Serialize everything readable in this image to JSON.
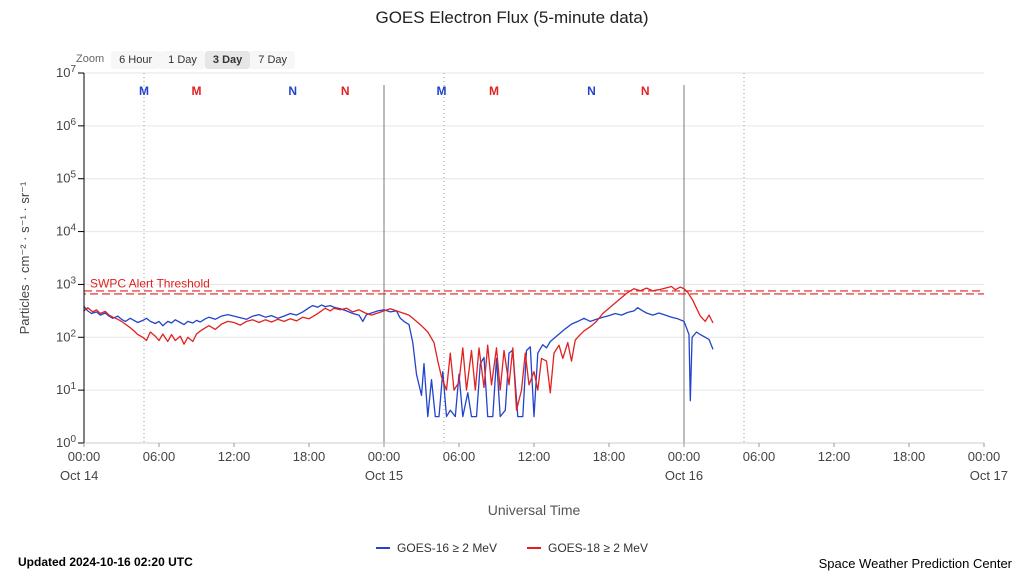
{
  "title": "GOES Electron Flux (5-minute data)",
  "zoom": {
    "label": "Zoom",
    "buttons": [
      {
        "label": "6 Hour",
        "selected": false
      },
      {
        "label": "1 Day",
        "selected": false
      },
      {
        "label": "3 Day",
        "selected": true
      },
      {
        "label": "7 Day",
        "selected": false
      }
    ]
  },
  "chart_data": {
    "type": "line",
    "title": "GOES Electron Flux (5-minute data)",
    "xlabel": "Universal Time",
    "ylabel": "Particles · cm⁻² · s⁻¹ · sr⁻¹",
    "y_axis": {
      "scale": "log10",
      "exponents": [
        0,
        1,
        2,
        3,
        4,
        5,
        6,
        7
      ],
      "base_label": "10"
    },
    "x_axis": {
      "range_hours": [
        0,
        72
      ],
      "tick_interval_hours": 6,
      "tick_labels": [
        "00:00",
        "06:00",
        "12:00",
        "18:00",
        "00:00",
        "06:00",
        "12:00",
        "18:00",
        "00:00",
        "06:00",
        "12:00",
        "18:00",
        "00:00"
      ],
      "date_labels": [
        {
          "label": "Oct 14",
          "hour": 0,
          "anchor": "start"
        },
        {
          "label": "Oct 15",
          "hour": 24,
          "anchor": "middle"
        },
        {
          "label": "Oct 16",
          "hour": 48,
          "anchor": "middle"
        },
        {
          "label": "Oct 17",
          "hour": 72,
          "anchor": "end"
        }
      ]
    },
    "threshold": {
      "label": "SWPC Alert Threshold",
      "log_value": 2.85,
      "color": "#e12120"
    },
    "day_boundary_hours": [
      24,
      48
    ],
    "dotted_line_hours": [
      4.8,
      28.8,
      52.8
    ],
    "markers": [
      {
        "label": "M",
        "sat": "GOES-16",
        "hour": 4.8
      },
      {
        "label": "M",
        "sat": "GOES-18",
        "hour": 9.0
      },
      {
        "label": "N",
        "sat": "GOES-16",
        "hour": 16.7
      },
      {
        "label": "N",
        "sat": "GOES-18",
        "hour": 20.9
      },
      {
        "label": "M",
        "sat": "GOES-16",
        "hour": 28.6
      },
      {
        "label": "M",
        "sat": "GOES-18",
        "hour": 32.8
      },
      {
        "label": "N",
        "sat": "GOES-16",
        "hour": 40.6
      },
      {
        "label": "N",
        "sat": "GOES-18",
        "hour": 44.9
      }
    ],
    "series": [
      {
        "name": "GOES-16 ≥ 2 MeV",
        "color": "#2244cc",
        "points": [
          [
            0,
            2.58
          ],
          [
            0.3,
            2.5
          ],
          [
            0.6,
            2.45
          ],
          [
            1,
            2.48
          ],
          [
            1.3,
            2.42
          ],
          [
            1.7,
            2.46
          ],
          [
            2,
            2.4
          ],
          [
            2.3,
            2.36
          ],
          [
            2.7,
            2.4
          ],
          [
            3,
            2.34
          ],
          [
            3.3,
            2.3
          ],
          [
            3.7,
            2.36
          ],
          [
            4,
            2.32
          ],
          [
            4.3,
            2.28
          ],
          [
            4.7,
            2.32
          ],
          [
            5,
            2.36
          ],
          [
            5.3,
            2.3
          ],
          [
            5.7,
            2.26
          ],
          [
            6,
            2.3
          ],
          [
            6.3,
            2.22
          ],
          [
            6.7,
            2.3
          ],
          [
            7,
            2.27
          ],
          [
            7.3,
            2.33
          ],
          [
            7.7,
            2.28
          ],
          [
            8,
            2.24
          ],
          [
            8.3,
            2.3
          ],
          [
            8.7,
            2.27
          ],
          [
            9,
            2.32
          ],
          [
            9.3,
            2.29
          ],
          [
            9.7,
            2.35
          ],
          [
            10,
            2.38
          ],
          [
            10.5,
            2.34
          ],
          [
            11,
            2.4
          ],
          [
            11.5,
            2.43
          ],
          [
            12,
            2.4
          ],
          [
            12.5,
            2.37
          ],
          [
            13,
            2.34
          ],
          [
            13.5,
            2.4
          ],
          [
            14,
            2.43
          ],
          [
            14.5,
            2.38
          ],
          [
            15,
            2.41
          ],
          [
            15.5,
            2.36
          ],
          [
            16,
            2.4
          ],
          [
            16.5,
            2.45
          ],
          [
            17,
            2.42
          ],
          [
            17.5,
            2.48
          ],
          [
            18,
            2.56
          ],
          [
            18.3,
            2.6
          ],
          [
            18.7,
            2.57
          ],
          [
            19,
            2.61
          ],
          [
            19.3,
            2.58
          ],
          [
            19.7,
            2.6
          ],
          [
            20,
            2.57
          ],
          [
            20.5,
            2.54
          ],
          [
            21,
            2.5
          ],
          [
            21.5,
            2.45
          ],
          [
            22,
            2.42
          ],
          [
            22.3,
            2.3
          ],
          [
            22.6,
            2.43
          ],
          [
            23,
            2.46
          ],
          [
            23.5,
            2.5
          ],
          [
            24,
            2.52
          ],
          [
            24.5,
            2.48
          ],
          [
            25,
            2.5
          ],
          [
            25.3,
            2.36
          ],
          [
            25.6,
            2.3
          ],
          [
            26,
            2.24
          ],
          [
            26.3,
            1.9
          ],
          [
            26.6,
            1.3
          ],
          [
            27,
            0.9
          ],
          [
            27.2,
            1.5
          ],
          [
            27.5,
            0.5
          ],
          [
            27.8,
            1.2
          ],
          [
            28.1,
            0.5
          ],
          [
            28.4,
            0.5
          ],
          [
            28.7,
            1.35
          ],
          [
            29,
            0.5
          ],
          [
            29.3,
            0.62
          ],
          [
            29.7,
            0.5
          ],
          [
            30,
            1.3
          ],
          [
            30.3,
            0.5
          ],
          [
            30.7,
            0.95
          ],
          [
            31,
            0.5
          ],
          [
            31.4,
            0.5
          ],
          [
            31.7,
            1.5
          ],
          [
            32,
            1.62
          ],
          [
            32.3,
            0.5
          ],
          [
            32.7,
            0.5
          ],
          [
            33,
            1.6
          ],
          [
            33.3,
            0.5
          ],
          [
            33.7,
            0.62
          ],
          [
            34,
            1.7
          ],
          [
            34.3,
            1.76
          ],
          [
            34.7,
            0.5
          ],
          [
            35.1,
            0.5
          ],
          [
            35.4,
            1.75
          ],
          [
            35.7,
            1.82
          ],
          [
            36,
            0.5
          ],
          [
            36.3,
            1.7
          ],
          [
            36.7,
            1.86
          ],
          [
            37,
            1.8
          ],
          [
            37.3,
            1.92
          ],
          [
            37.7,
            2.0
          ],
          [
            38,
            2.06
          ],
          [
            38.5,
            2.16
          ],
          [
            39,
            2.25
          ],
          [
            39.5,
            2.3
          ],
          [
            40,
            2.36
          ],
          [
            40.5,
            2.3
          ],
          [
            41,
            2.34
          ],
          [
            41.5,
            2.38
          ],
          [
            42,
            2.41
          ],
          [
            42.5,
            2.45
          ],
          [
            43,
            2.42
          ],
          [
            43.5,
            2.47
          ],
          [
            44,
            2.5
          ],
          [
            44.3,
            2.56
          ],
          [
            44.7,
            2.5
          ],
          [
            45,
            2.46
          ],
          [
            45.5,
            2.42
          ],
          [
            46,
            2.46
          ],
          [
            46.5,
            2.42
          ],
          [
            47,
            2.38
          ],
          [
            47.5,
            2.35
          ],
          [
            48,
            2.3
          ],
          [
            48.2,
            2.18
          ],
          [
            48.4,
            2.05
          ],
          [
            48.5,
            0.8
          ],
          [
            48.65,
            2.0
          ],
          [
            49,
            2.1
          ],
          [
            49.3,
            2.05
          ],
          [
            49.7,
            2.0
          ],
          [
            50,
            1.96
          ],
          [
            50.3,
            1.78
          ]
        ]
      },
      {
        "name": "GOES-18 ≥ 2 MeV",
        "color": "#e12120",
        "points": [
          [
            0,
            2.5
          ],
          [
            0.3,
            2.56
          ],
          [
            0.7,
            2.48
          ],
          [
            1,
            2.52
          ],
          [
            1.3,
            2.45
          ],
          [
            1.7,
            2.49
          ],
          [
            2,
            2.42
          ],
          [
            2.3,
            2.38
          ],
          [
            2.7,
            2.34
          ],
          [
            3,
            2.3
          ],
          [
            3.3,
            2.25
          ],
          [
            3.7,
            2.18
          ],
          [
            4,
            2.12
          ],
          [
            4.3,
            2.05
          ],
          [
            4.7,
            2.0
          ],
          [
            5,
            1.94
          ],
          [
            5.3,
            2.1
          ],
          [
            5.7,
            2.02
          ],
          [
            6,
            1.94
          ],
          [
            6.3,
            2.06
          ],
          [
            6.7,
            1.92
          ],
          [
            7,
            2.05
          ],
          [
            7.3,
            1.94
          ],
          [
            7.7,
            2.02
          ],
          [
            8,
            1.87
          ],
          [
            8.3,
            2.0
          ],
          [
            8.7,
            1.92
          ],
          [
            9,
            2.06
          ],
          [
            9.3,
            2.12
          ],
          [
            9.7,
            2.18
          ],
          [
            10,
            2.22
          ],
          [
            10.5,
            2.15
          ],
          [
            11,
            2.25
          ],
          [
            11.5,
            2.3
          ],
          [
            12,
            2.28
          ],
          [
            12.5,
            2.23
          ],
          [
            13,
            2.3
          ],
          [
            13.5,
            2.33
          ],
          [
            14,
            2.28
          ],
          [
            14.5,
            2.33
          ],
          [
            15,
            2.29
          ],
          [
            15.5,
            2.34
          ],
          [
            16,
            2.3
          ],
          [
            16.5,
            2.35
          ],
          [
            17,
            2.31
          ],
          [
            17.5,
            2.38
          ],
          [
            18,
            2.35
          ],
          [
            18.5,
            2.42
          ],
          [
            19,
            2.5
          ],
          [
            19.3,
            2.55
          ],
          [
            19.7,
            2.5
          ],
          [
            20,
            2.55
          ],
          [
            20.5,
            2.52
          ],
          [
            21,
            2.55
          ],
          [
            21.5,
            2.48
          ],
          [
            22,
            2.52
          ],
          [
            22.5,
            2.46
          ],
          [
            23,
            2.42
          ],
          [
            23.5,
            2.46
          ],
          [
            24,
            2.5
          ],
          [
            24.5,
            2.54
          ],
          [
            25,
            2.5
          ],
          [
            25.5,
            2.46
          ],
          [
            26,
            2.42
          ],
          [
            26.5,
            2.32
          ],
          [
            27,
            2.22
          ],
          [
            27.5,
            2.1
          ],
          [
            28,
            1.9
          ],
          [
            28.3,
            1.55
          ],
          [
            28.6,
            1.25
          ],
          [
            29,
            1.0
          ],
          [
            29.3,
            1.7
          ],
          [
            29.6,
            1.0
          ],
          [
            30,
            1.15
          ],
          [
            30.3,
            1.8
          ],
          [
            30.6,
            1.0
          ],
          [
            31,
            1.75
          ],
          [
            31.3,
            1.0
          ],
          [
            31.6,
            1.8
          ],
          [
            32,
            1.05
          ],
          [
            32.3,
            1.85
          ],
          [
            32.6,
            1.1
          ],
          [
            33,
            1.8
          ],
          [
            33.3,
            1.0
          ],
          [
            33.6,
            1.75
          ],
          [
            34,
            1.1
          ],
          [
            34.3,
            1.8
          ],
          [
            34.6,
            0.62
          ],
          [
            35,
            1.0
          ],
          [
            35.3,
            1.7
          ],
          [
            35.6,
            1.1
          ],
          [
            36,
            1.35
          ],
          [
            36.3,
            1.0
          ],
          [
            36.6,
            1.6
          ],
          [
            37,
            1.55
          ],
          [
            37.3,
            0.95
          ],
          [
            37.6,
            1.7
          ],
          [
            38,
            1.85
          ],
          [
            38.3,
            1.6
          ],
          [
            38.7,
            1.9
          ],
          [
            39,
            1.55
          ],
          [
            39.3,
            1.95
          ],
          [
            39.7,
            2.05
          ],
          [
            40,
            2.12
          ],
          [
            40.5,
            2.2
          ],
          [
            41,
            2.3
          ],
          [
            41.5,
            2.45
          ],
          [
            42,
            2.55
          ],
          [
            42.5,
            2.65
          ],
          [
            43,
            2.75
          ],
          [
            43.5,
            2.85
          ],
          [
            44,
            2.92
          ],
          [
            44.5,
            2.88
          ],
          [
            45,
            2.93
          ],
          [
            45.5,
            2.88
          ],
          [
            46,
            2.9
          ],
          [
            46.5,
            2.93
          ],
          [
            47,
            2.96
          ],
          [
            47.3,
            2.9
          ],
          [
            47.7,
            2.95
          ],
          [
            48,
            2.92
          ],
          [
            48.3,
            2.85
          ],
          [
            48.7,
            2.7
          ],
          [
            49,
            2.55
          ],
          [
            49.3,
            2.4
          ],
          [
            49.7,
            2.3
          ],
          [
            50,
            2.42
          ],
          [
            50.3,
            2.28
          ]
        ]
      }
    ]
  },
  "legend": {
    "items": [
      {
        "label": "GOES-16 ≥ 2 MeV",
        "color": "#2244cc"
      },
      {
        "label": "GOES-18 ≥ 2 MeV",
        "color": "#e12120"
      }
    ]
  },
  "footer": {
    "updated": "Updated 2024-10-16 02:20 UTC",
    "credit": "Space Weather Prediction Center"
  }
}
